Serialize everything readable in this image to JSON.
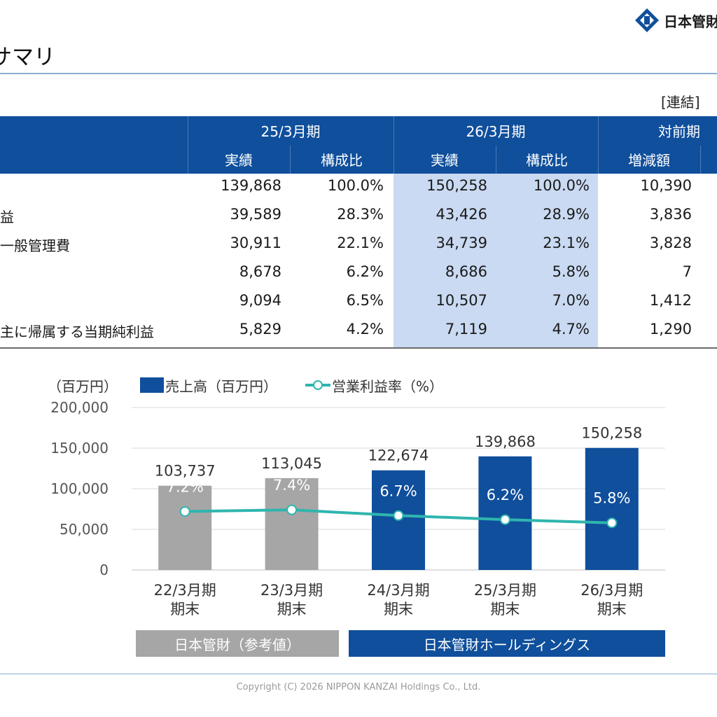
{
  "header": {
    "logo_text": "日本管財",
    "page_title": "サマリ",
    "unit_label": "[連結]"
  },
  "table": {
    "groups": [
      "25/3月期",
      "26/3月期",
      "対前期"
    ],
    "subheaders": [
      "実績",
      "構成比",
      "実績",
      "構成比",
      "増減額"
    ],
    "rows": [
      {
        "label": "",
        "values": [
          "139,868",
          "100.0%",
          "150,258",
          "100.0%",
          "10,390"
        ]
      },
      {
        "label": "益",
        "values": [
          "39,589",
          "28.3%",
          "43,426",
          "28.9%",
          "3,836"
        ]
      },
      {
        "label": "一般管理費",
        "values": [
          "30,911",
          "22.1%",
          "34,739",
          "23.1%",
          "3,828"
        ]
      },
      {
        "label": "",
        "values": [
          "8,678",
          "6.2%",
          "8,686",
          "5.8%",
          "7"
        ]
      },
      {
        "label": "",
        "values": [
          "9,094",
          "6.5%",
          "10,507",
          "7.0%",
          "1,412"
        ]
      },
      {
        "label": "主に帰属する当期純利益",
        "values": [
          "5,829",
          "4.2%",
          "7,119",
          "4.7%",
          "1,290"
        ]
      }
    ]
  },
  "chart_data": {
    "type": "bar",
    "y_unit_label": "（百万円）",
    "categories": [
      "22/3月期\n期末",
      "23/3月期\n期末",
      "24/3月期\n期末",
      "25/3月期\n期末",
      "26/3月期\n期末"
    ],
    "series": [
      {
        "name": "売上高（百万円）",
        "type": "bar",
        "values": [
          103737,
          113045,
          122674,
          139868,
          150258
        ],
        "value_labels": [
          "103,737",
          "113,045",
          "122,674",
          "139,868",
          "150,258"
        ]
      },
      {
        "name": "営業利益率（%）",
        "type": "line",
        "values": [
          7.2,
          7.4,
          6.7,
          6.2,
          5.8
        ],
        "value_labels": [
          "7.2%",
          "7.4%",
          "6.7%",
          "6.2%",
          "5.8%"
        ]
      }
    ],
    "bar_colors": [
      "#a6a6a6",
      "#a6a6a6",
      "#0f4f9c",
      "#0f4f9c",
      "#0f4f9c"
    ],
    "line_color": "#2fb5ae",
    "ylim": [
      0,
      200000
    ],
    "yticks": [
      0,
      50000,
      100000,
      150000,
      200000
    ],
    "ytick_labels": [
      "0",
      "50,000",
      "100,000",
      "150,000",
      "200,000"
    ],
    "grid": true,
    "legend_position": "top"
  },
  "group_labels": [
    {
      "text": "日本管財（参考値）",
      "color": "#a6a6a6"
    },
    {
      "text": "日本管財ホールディングス",
      "color": "#0f4f9c"
    }
  ],
  "footer": {
    "copyright": "Copyright (C) 2026 NIPPON KANZAI Holdings Co., Ltd."
  }
}
